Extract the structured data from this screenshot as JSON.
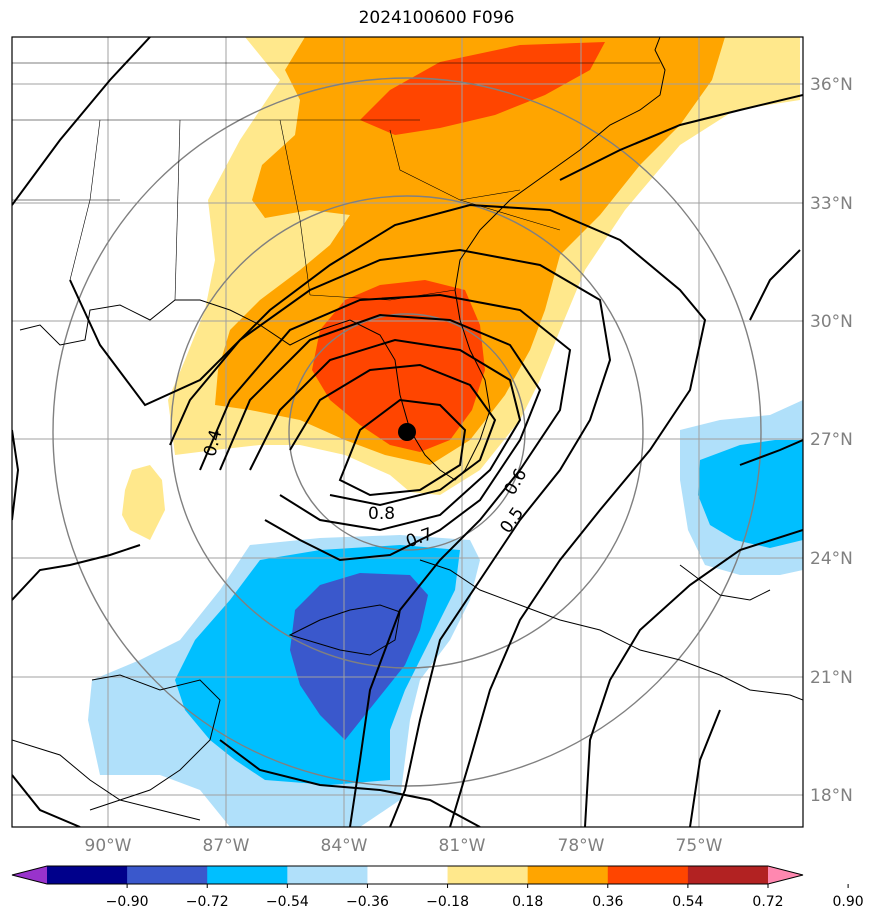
{
  "title": "2024100600 F096",
  "latitude_labels": [
    "36°N",
    "33°N",
    "30°N",
    "27°N",
    "24°N",
    "21°N",
    "18°N"
  ],
  "longitude_labels": [
    "90°W",
    "87°W",
    "84°W",
    "81°W",
    "78°W",
    "75°W"
  ],
  "colorbar": {
    "ticks": [
      "−0.90",
      "−0.72",
      "−0.54",
      "−0.36",
      "−0.18",
      "0.18",
      "0.36",
      "0.54",
      "0.72",
      "0.90"
    ],
    "colors": [
      "#9933cc",
      "#00008b",
      "#3a58cc",
      "#00bfff",
      "#b0e0fa",
      "#ffffff",
      "#ffe88c",
      "#ffa500",
      "#ff4500",
      "#b22222",
      "#ff88b0"
    ]
  },
  "contour_labels": [
    "0.4",
    "0.8",
    "0.7",
    "0.6",
    "0.5"
  ],
  "storm_center_marker": "black-dot"
}
